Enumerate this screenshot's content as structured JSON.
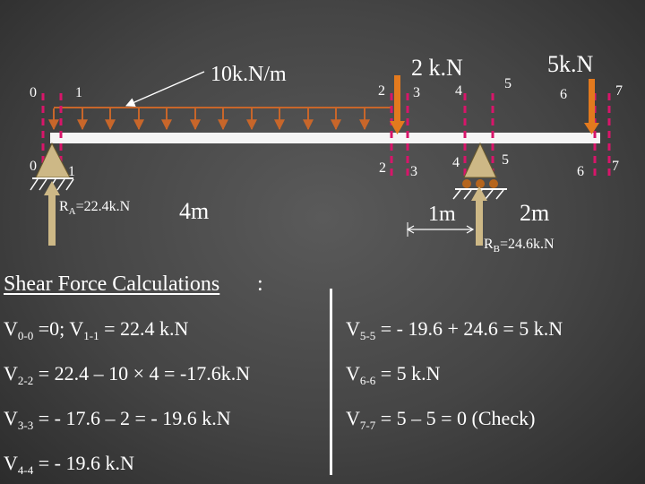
{
  "colors": {
    "beam": "#f5f5f5",
    "udl_arrow": "#c8662a",
    "point_load": "#e37a1e",
    "section_line": "#d8156a",
    "support": "#cdb886",
    "pin": "#b5651d"
  },
  "diagram": {
    "udl_label": "10k.N/m",
    "load_p1": "2 k.N",
    "load_p2": "5k.N",
    "top_sections": [
      "0",
      "1",
      "2",
      "3",
      "4",
      "5",
      "6",
      "7"
    ],
    "bottom_sections": [
      "0",
      "1",
      "2",
      "3",
      "4",
      "5",
      "6",
      "7"
    ],
    "reaction_a_prefix": "R",
    "reaction_a_sub": "A",
    "reaction_a_value": "=22.4k.N",
    "reaction_b_prefix": "R",
    "reaction_b_sub": "B",
    "reaction_b_value": "=24.6k.N",
    "span_1": "4m",
    "span_2": "1m",
    "span_3": "2m"
  },
  "heading": "Shear Force Calculations",
  "heading_colon": ":",
  "calcs": {
    "left": [
      {
        "pre": "V",
        "sub": "0-0",
        "rest": " =0;  V",
        "sub2": "1-1",
        "rest2": " = 22.4 k.N"
      },
      {
        "pre": "V",
        "sub": "2-2",
        "rest": " = 22.4 – 10 × 4 = -17.6k.N"
      },
      {
        "pre": "V",
        "sub": "3-3",
        "rest": " = - 17.6 – 2 = - 19.6 k.N"
      },
      {
        "pre": "V",
        "sub": "4-4",
        "rest": " = - 19.6 k.N"
      }
    ],
    "right": [
      {
        "pre": "V",
        "sub": "5-5",
        "rest": " = - 19.6 + 24.6 = 5 k.N"
      },
      {
        "pre": "V",
        "sub": "6-6",
        "rest": " = 5 k.N"
      },
      {
        "pre": "V",
        "sub": "7-7",
        "rest": " = 5 – 5 = 0 (Check)"
      }
    ]
  }
}
